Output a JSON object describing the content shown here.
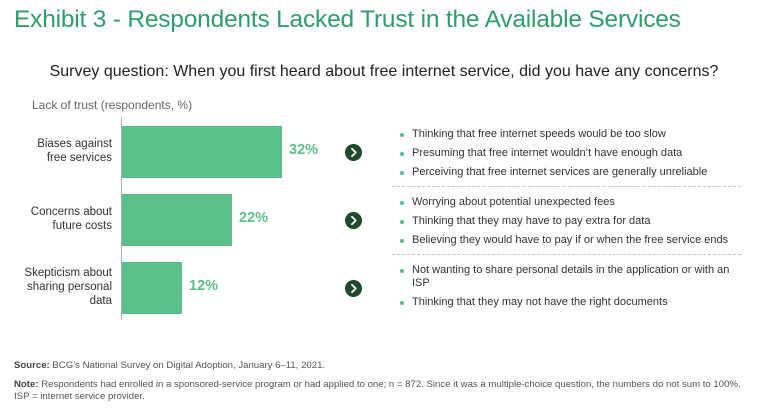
{
  "title": "Exhibit 3 - Respondents Lacked Trust in the Available Services",
  "subtitle": "Survey question: When you first heard about free internet service, did you have any concerns?",
  "colors": {
    "accent": "#2f9e6a",
    "bar": "#5bbf8a",
    "arrow": "#1f4a2b"
  },
  "chart_data": {
    "type": "bar",
    "orientation": "horizontal",
    "title": "Lack of trust (respondents, %)",
    "categories": [
      "Biases against free services",
      "Concerns about future costs",
      "Skepticism about sharing personal data"
    ],
    "values": [
      32,
      22,
      12
    ],
    "value_labels": [
      "32%",
      "22%",
      "12%"
    ],
    "xlim": [
      0,
      100
    ],
    "details": [
      [
        "Thinking that free internet speeds would be too slow",
        "Presuming that free internet wouldn’t have enough data",
        "Perceiving that free internet services are generally unreliable"
      ],
      [
        "Worrying about potential unexpected fees",
        "Thinking that they may have to pay extra for data",
        "Believing they would have to pay if or when the free service ends"
      ],
      [
        "Not wanting to share personal details in the application or with an ISP",
        "Thinking that they may not have the right documents"
      ]
    ]
  },
  "footer": {
    "source_label": "Source:",
    "source_text": "BCG’s National Survey on Digital Adoption, January 6–11, 2021.",
    "note_label": "Note:",
    "note_text": "Respondents had enrolled in a sponsored-service program or had applied to one; n = 872. Since it was a multiple-choice question, the numbers do not sum to 100%. ISP = internet service provider."
  }
}
